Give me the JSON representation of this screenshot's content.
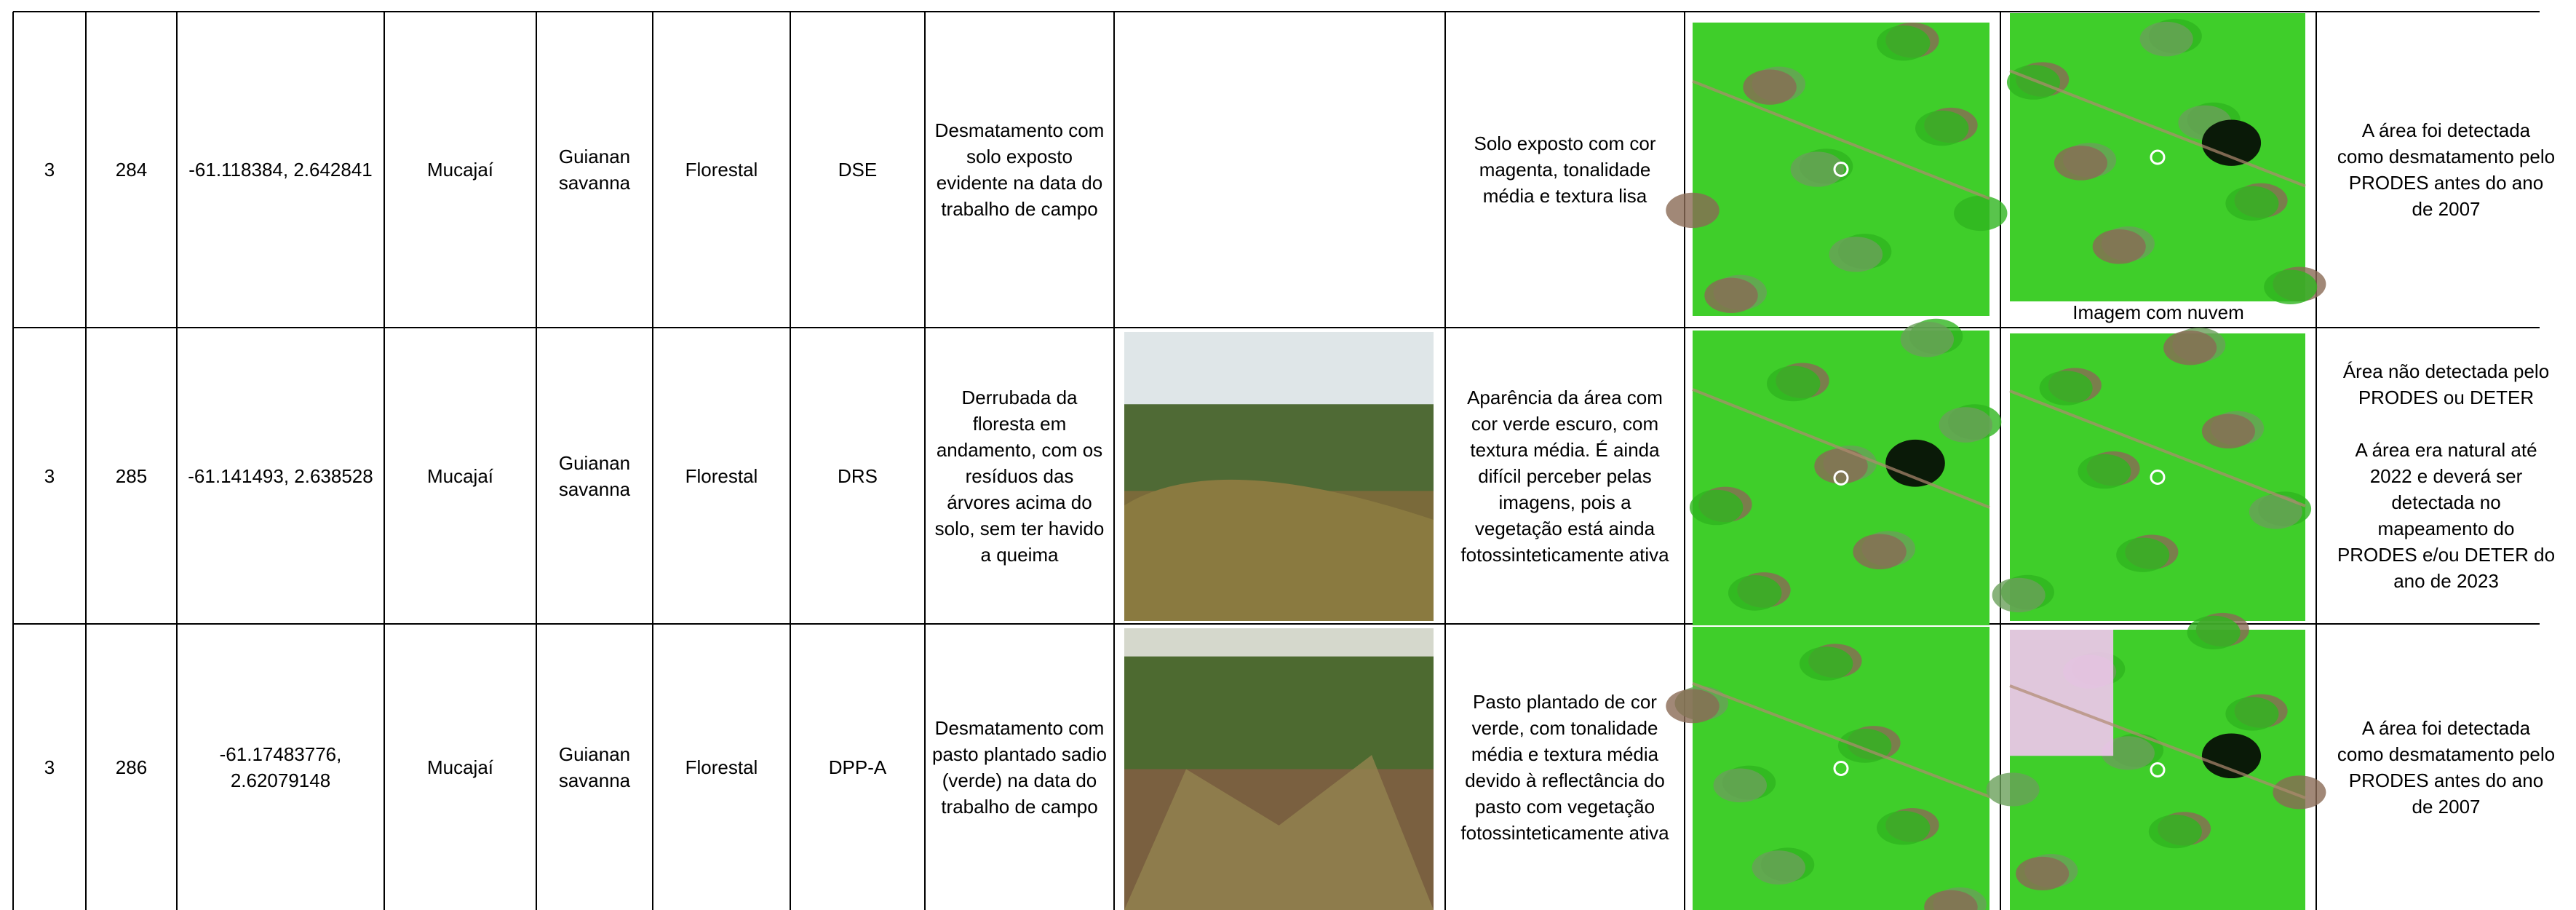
{
  "table": {
    "rows": [
      {
        "id": "3",
        "number": "284",
        "coordinates": "-61.118384, 2.642841",
        "municipality": "Mucajaí",
        "ecoregion": "Guianan savanna",
        "class": "Florestal",
        "code": "DSE",
        "description": "Desmatamento com solo exposto evidente na data do trabalho de campo",
        "image_description": "Solo exposto com cor magenta, tonalidade média e textura lisa",
        "image_caption": "Imagem com nuvem",
        "observation": [
          "A área foi detectada como desmatamento pelo PRODES antes do ano de 2007"
        ]
      },
      {
        "id": "3",
        "number": "285",
        "coordinates": "-61.141493, 2.638528",
        "municipality": "Mucajaí",
        "ecoregion": "Guianan savanna",
        "class": "Florestal",
        "code": "DRS",
        "description": "Derrubada da floresta em andamento, com os resíduos das árvores acima do solo, sem ter havido a queima",
        "image_description": "Aparência da área com cor verde escuro, com textura média. É ainda difícil perceber pelas imagens, pois a vegetação está ainda fotossinteticamente ativa",
        "observation": [
          "Área não detectada pelo PRODES ou DETER",
          "A área era natural até 2022 e deverá ser detectada no mapeamento do PRODES e/ou DETER do ano de 2023"
        ]
      },
      {
        "id": "3",
        "number": "286",
        "coordinates": "-61.17483776, 2.62079148",
        "municipality": "Mucajaí",
        "ecoregion": "Guianan savanna",
        "class": "Florestal",
        "code": "DPP-A",
        "description": "Desmatamento com pasto plantado sadio (verde) na data do trabalho de campo",
        "image_description": "Pasto plantado de cor verde, com tonalidade média e textura média devido à reflectância do pasto com vegetação fotossinteticamente ativa",
        "observation": [
          "A área foi detectada como desmatamento pelo PRODES antes do ano de 2007"
        ]
      }
    ]
  }
}
